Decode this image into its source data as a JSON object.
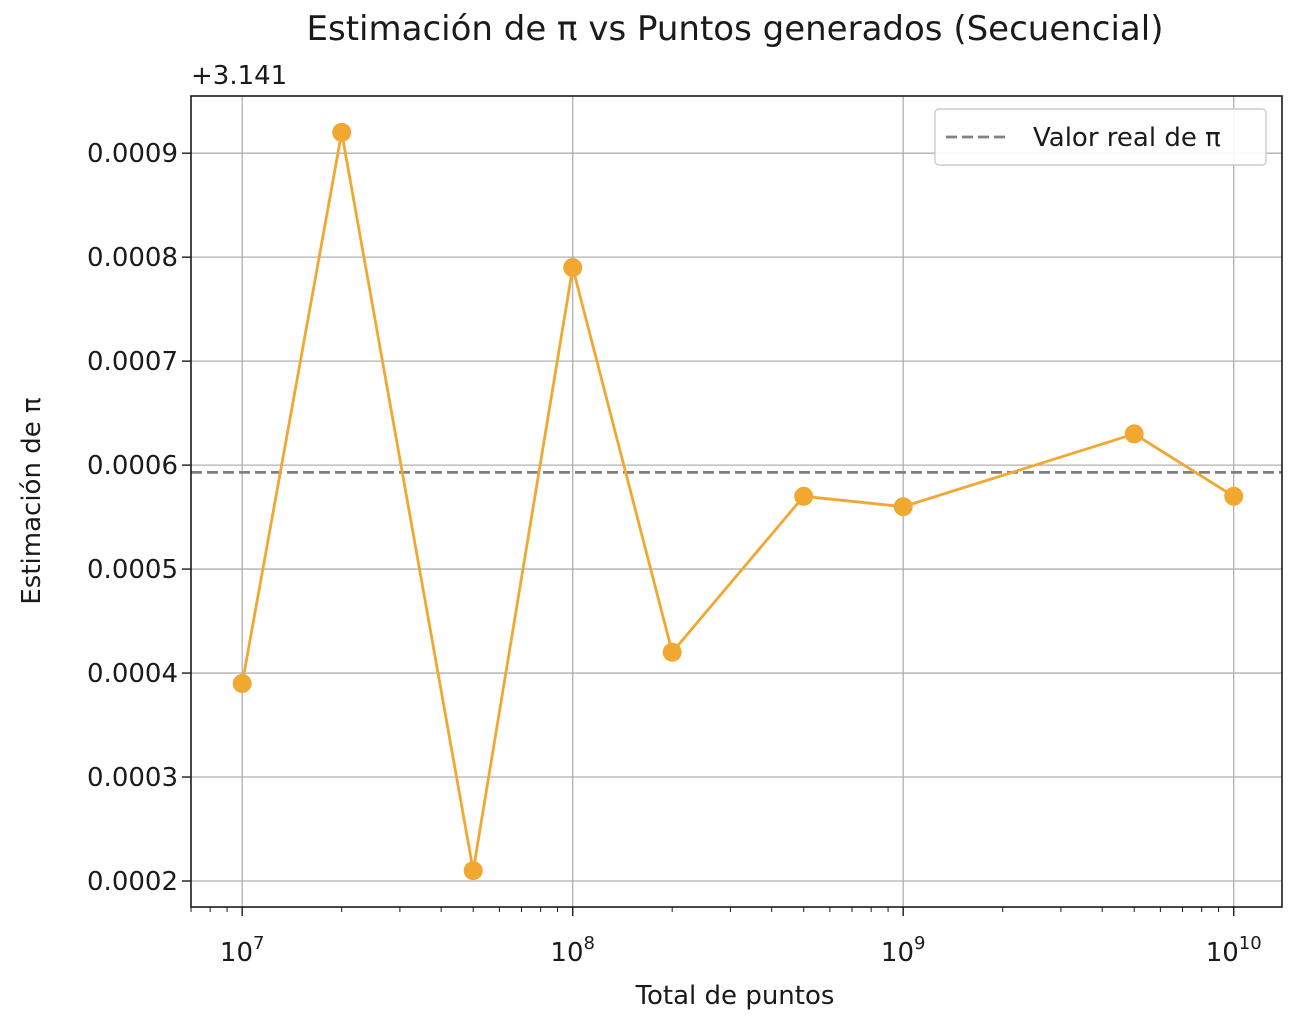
{
  "chart_data": {
    "type": "line",
    "title": "Estimación de π vs Puntos generados (Secuencial)",
    "xlabel": "Total de puntos",
    "ylabel": "Estimación de π",
    "x_scale": "log",
    "xlim": [
      7000000,
      14000000000
    ],
    "ylim": [
      0.000175,
      0.000955
    ],
    "y_offset_label": "+3.141",
    "x_ticks": [
      {
        "value": 10000000,
        "base": "10",
        "exp": "7"
      },
      {
        "value": 100000000,
        "base": "10",
        "exp": "8"
      },
      {
        "value": 1000000000,
        "base": "10",
        "exp": "9"
      },
      {
        "value": 10000000000,
        "base": "10",
        "exp": "10"
      }
    ],
    "y_ticks": [
      0.0002,
      0.0003,
      0.0004,
      0.0005,
      0.0006,
      0.0007,
      0.0008,
      0.0009
    ],
    "y_tick_labels": [
      "0.0002",
      "0.0003",
      "0.0004",
      "0.0005",
      "0.0006",
      "0.0007",
      "0.0008",
      "0.0009"
    ],
    "grid": true,
    "series": [
      {
        "color": "#f0a830",
        "marker": "circle",
        "x": [
          10000000,
          20000000,
          50000000,
          100000000,
          200000000,
          500000000,
          1000000000,
          5000000000,
          10000000000
        ],
        "y": [
          0.00039,
          0.00092,
          0.00021,
          0.00079,
          0.00042,
          0.00057,
          0.00056,
          0.00063,
          0.00057
        ]
      }
    ],
    "reference_line": {
      "label": "Valor real de π",
      "y": 0.000593,
      "color": "#808080",
      "style": "dashed"
    },
    "legend_position": "top-right"
  }
}
